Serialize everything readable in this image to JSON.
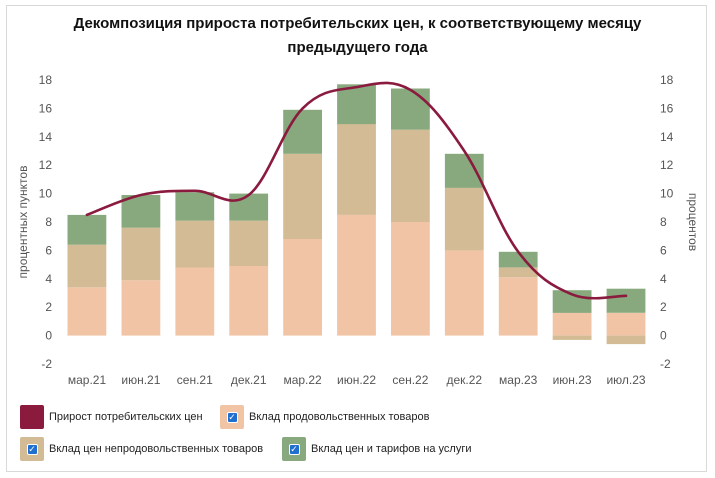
{
  "chart_data": {
    "type": "bar",
    "title_lines": [
      "Декомпозиция прироста потребительских цен, к соответствующему месяцу",
      "предыдущего года"
    ],
    "ylabel_left": "процентных пунктов",
    "ylabel_right": "процентов",
    "ylim": [
      -2,
      18
    ],
    "yticks": [
      "-2",
      "0",
      "2",
      "4",
      "6",
      "8",
      "10",
      "12",
      "14",
      "16",
      "18"
    ],
    "ytick_values": [
      -2,
      0,
      2,
      4,
      6,
      8,
      10,
      12,
      14,
      16,
      18
    ],
    "categories": [
      "мар.21",
      "июн.21",
      "сен.21",
      "дек.21",
      "мар.22",
      "июн.22",
      "сен.22",
      "дек.22",
      "мар.23",
      "июн.23",
      "июл.23"
    ],
    "stacked": true,
    "grid": false,
    "legend_position": "bottom",
    "series": [
      {
        "name": "Вклад продовольственных товаров",
        "kind": "bar",
        "color": "#f1c4a6",
        "values": [
          3.4,
          3.9,
          4.8,
          4.9,
          6.8,
          8.5,
          8.0,
          6.0,
          4.1,
          1.6,
          1.6
        ]
      },
      {
        "name": "Вклад цен непродовольственных товаров",
        "kind": "bar",
        "color": "#d3bb96",
        "values": [
          3.0,
          3.7,
          3.3,
          3.2,
          6.0,
          6.4,
          6.5,
          4.4,
          0.7,
          -0.3,
          -0.6
        ]
      },
      {
        "name": "Вклад цен и тарифов на услуги",
        "kind": "bar",
        "color": "#88a97d",
        "values": [
          2.1,
          2.3,
          2.0,
          1.9,
          3.1,
          2.8,
          2.9,
          2.4,
          1.1,
          1.6,
          1.7
        ]
      },
      {
        "name": "Прирост потребительских цен",
        "kind": "line",
        "color": "#8a1a3e",
        "values": [
          8.5,
          9.9,
          10.2,
          9.9,
          16.0,
          17.5,
          17.3,
          13.0,
          5.9,
          2.9,
          2.8
        ]
      }
    ]
  },
  "legend": [
    {
      "label": "Прирост потребительских цен",
      "color": "#8a1a3e",
      "checked": false
    },
    {
      "label": "Вклад продовольственных товаров",
      "color": "#f1c4a6",
      "checked": true
    },
    {
      "label": "Вклад цен непродовольственных товаров",
      "color": "#d3bb96",
      "checked": true
    },
    {
      "label": "Вклад цен и тарифов на услуги",
      "color": "#88a97d",
      "checked": true
    }
  ]
}
